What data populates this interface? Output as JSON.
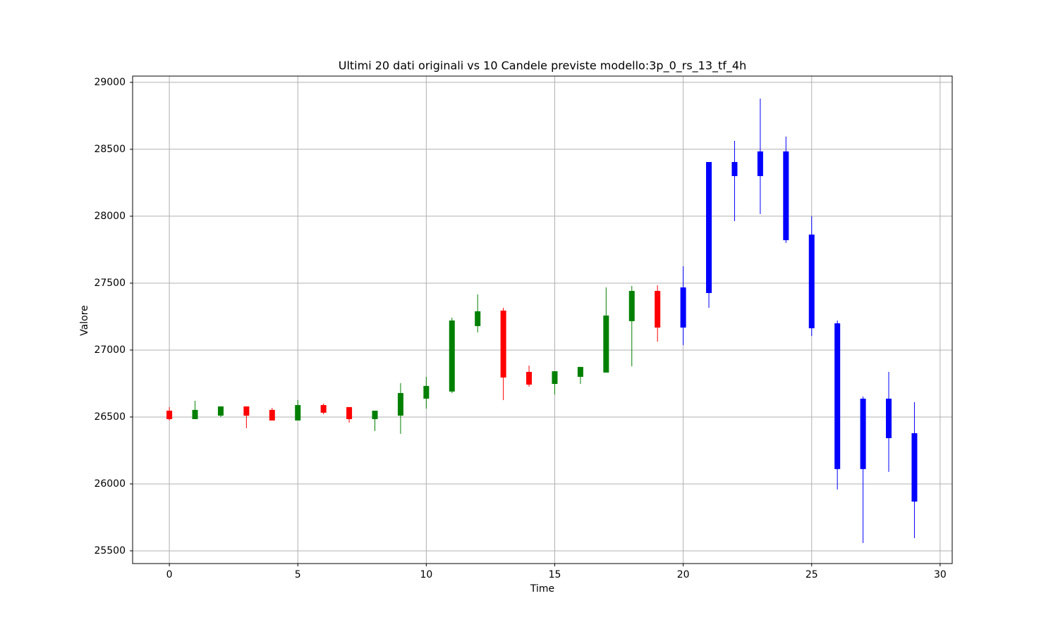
{
  "chart_data": {
    "type": "candlestick",
    "title": "Ultimi 20 dati originali vs 10 Candele previste modello:3p_0_rs_13_tf_4h",
    "xlabel": "Time",
    "ylabel": "Valore",
    "xlim": [
      -1.43,
      30.47
    ],
    "xticks": [
      0,
      5,
      10,
      15,
      20,
      25,
      30
    ],
    "ylim": [
      25405,
      29047
    ],
    "yticks": [
      25500,
      26000,
      26500,
      27000,
      27500,
      28000,
      28500,
      29000
    ],
    "grid": true,
    "series": [
      {
        "up_color": "green",
        "down_color": "red",
        "x": [
          0,
          1,
          2,
          3,
          4,
          5,
          6,
          7,
          8,
          9,
          10,
          11,
          12,
          13,
          14,
          15,
          16,
          17,
          18,
          19
        ],
        "open": [
          26547,
          26484,
          26510,
          26579,
          26553,
          26474,
          26589,
          26574,
          26484,
          26510,
          26637,
          26690,
          27179,
          27295,
          26837,
          26747,
          26800,
          26832,
          27216,
          27442
        ],
        "high": [
          26574,
          26621,
          26579,
          26579,
          26568,
          26626,
          26600,
          26574,
          26547,
          26753,
          26800,
          27242,
          27416,
          27316,
          26884,
          26842,
          26874,
          27468,
          27479,
          27484
        ],
        "low": [
          26474,
          26484,
          26500,
          26416,
          26474,
          26474,
          26521,
          26458,
          26395,
          26374,
          26563,
          26679,
          27132,
          26626,
          26726,
          26668,
          26747,
          26832,
          26879,
          27063
        ],
        "close": [
          26484,
          26553,
          26579,
          26510,
          26474,
          26589,
          26532,
          26484,
          26547,
          26679,
          26732,
          27221,
          27290,
          26795,
          26742,
          26842,
          26874,
          27258,
          27442,
          27168
        ]
      },
      {
        "color": "blue",
        "x": [
          20,
          21,
          22,
          23,
          24,
          25,
          26,
          27,
          28,
          29
        ],
        "open": [
          27168,
          27426,
          28405,
          28300,
          28484,
          27863,
          27200,
          26637,
          26342,
          26379
        ],
        "high": [
          27626,
          28405,
          28563,
          28879,
          28595,
          28000,
          27221,
          26653,
          26837,
          26611
        ],
        "low": [
          27037,
          27316,
          27963,
          28016,
          27800,
          27105,
          25958,
          25558,
          26090,
          25595
        ],
        "close": [
          27468,
          28405,
          28300,
          28484,
          27821,
          27163,
          26111,
          26111,
          26637,
          25868
        ]
      }
    ]
  }
}
